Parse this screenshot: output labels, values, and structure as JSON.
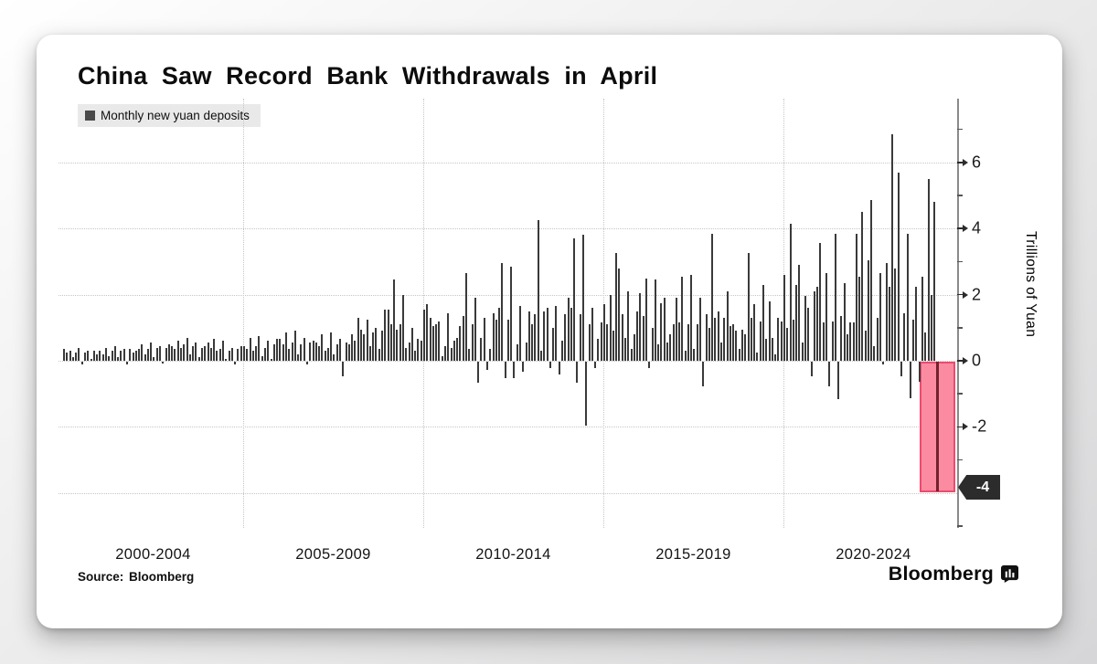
{
  "header": {
    "title": "China Saw Record Bank Withdrawals in April"
  },
  "legend": {
    "label": "Monthly new yuan deposits",
    "marker_color": "#4a4a4a"
  },
  "y_axis": {
    "title": "Trillions of Yuan",
    "major_ticks": [
      6,
      4,
      2,
      0,
      -2
    ],
    "minor_ticks": [
      7,
      5,
      3,
      1,
      -1,
      -3,
      -5
    ],
    "callout": "-4"
  },
  "x_axis": {
    "labels": [
      "2000-2004",
      "2005-2009",
      "2010-2014",
      "2015-2019",
      "2020-2024"
    ]
  },
  "footer": {
    "source": "Source: Bloomberg",
    "brand": "Bloomberg"
  },
  "colors": {
    "bar": "#3a3a3a",
    "highlight_fill": "#fa8ba1",
    "highlight_border": "#ee4a6e",
    "highlight_bar": "#73212e",
    "callout_bg": "#2c2c2c",
    "gridline": "#c6c6c6"
  },
  "chart_data": {
    "type": "bar",
    "title": "China Saw Record Bank Withdrawals in April",
    "series_label": "Monthly new yuan deposits",
    "unit": "trillions of yuan",
    "x_start": "2000-01",
    "x_end": "2024-04",
    "ylabel": "Trillions of Yuan",
    "ylim": [
      -5,
      8
    ],
    "y_gridlines": [
      6,
      4,
      2,
      0,
      -2,
      -4
    ],
    "x_gridline_years": [
      2005,
      2010,
      2015,
      2020
    ],
    "x_tick_labels": [
      "2000-2004",
      "2005-2009",
      "2010-2014",
      "2015-2019",
      "2020-2024"
    ],
    "grid": "dotted",
    "legend_position": "top-left",
    "highlighted_month": "2024-04",
    "highlighted_value": -3.92,
    "callout_label": "-4",
    "values_by_year": {
      "2000": [
        0.35,
        0.25,
        0.3,
        0.1,
        0.25,
        0.4,
        -0.1,
        0.25,
        0.3,
        0.05,
        0.3,
        0.2
      ],
      "2001": [
        0.3,
        0.2,
        0.4,
        0.15,
        0.3,
        0.45,
        0.1,
        0.3,
        0.35,
        -0.1,
        0.35,
        0.25
      ],
      "2002": [
        0.3,
        0.35,
        0.5,
        0.2,
        0.35,
        0.55,
        0.1,
        0.4,
        0.45,
        -0.05,
        0.4,
        0.5
      ],
      "2003": [
        0.45,
        0.35,
        0.6,
        0.4,
        0.5,
        0.7,
        0.2,
        0.45,
        0.55,
        0.1,
        0.4,
        0.45
      ],
      "2004": [
        0.55,
        0.4,
        0.65,
        0.3,
        0.35,
        0.6,
        0.05,
        0.3,
        0.4,
        -0.1,
        0.35,
        0.45
      ],
      "2005": [
        0.45,
        0.35,
        0.7,
        0.3,
        0.45,
        0.75,
        0.15,
        0.4,
        0.6,
        0.05,
        0.5,
        0.65
      ],
      "2006": [
        0.65,
        0.5,
        0.85,
        0.35,
        0.55,
        0.9,
        0.2,
        0.5,
        0.7,
        -0.1,
        0.55,
        0.6
      ],
      "2007": [
        0.55,
        0.45,
        0.8,
        0.3,
        0.4,
        0.85,
        0.2,
        0.5,
        0.65,
        -0.45,
        0.55,
        0.5
      ],
      "2008": [
        0.8,
        0.6,
        1.3,
        0.95,
        0.8,
        1.25,
        0.45,
        0.85,
        1.0,
        0.35,
        0.9,
        1.55
      ],
      "2009": [
        1.55,
        1.1,
        2.45,
        0.95,
        1.1,
        2.0,
        0.4,
        0.55,
        1.0,
        0.3,
        0.65,
        0.6
      ],
      "2010": [
        1.55,
        1.7,
        1.3,
        1.05,
        1.1,
        1.2,
        0.15,
        0.45,
        1.45,
        0.4,
        0.6,
        0.7
      ],
      "2011": [
        1.05,
        1.35,
        2.65,
        0.35,
        1.1,
        1.9,
        -0.65,
        0.7,
        1.3,
        -0.25,
        0.35,
        1.45
      ],
      "2012": [
        1.25,
        1.6,
        2.95,
        -0.5,
        1.25,
        2.85,
        -0.5,
        0.5,
        1.65,
        -0.3,
        0.55,
        1.5
      ],
      "2013": [
        1.1,
        1.4,
        4.25,
        0.3,
        1.5,
        1.6,
        -0.2,
        1.0,
        1.65,
        -0.4,
        0.6,
        1.4
      ],
      "2014": [
        1.9,
        1.6,
        3.7,
        -0.65,
        1.4,
        3.8,
        -1.95,
        1.1,
        1.6,
        -0.2,
        0.65,
        1.15
      ],
      "2015": [
        1.7,
        1.1,
        2.0,
        0.9,
        3.25,
        2.8,
        1.4,
        0.7,
        2.1,
        0.35,
        0.8,
        1.5
      ],
      "2016": [
        2.05,
        1.35,
        2.5,
        -0.2,
        1.0,
        2.45,
        0.5,
        1.75,
        1.9,
        0.55,
        0.8,
        1.1
      ],
      "2017": [
        1.9,
        1.15,
        2.55,
        0.3,
        1.1,
        2.6,
        0.35,
        1.1,
        1.9,
        -0.75,
        1.4,
        1.0
      ],
      "2018": [
        3.85,
        1.3,
        1.5,
        0.55,
        1.3,
        2.1,
        1.05,
        1.1,
        0.9,
        0.35,
        0.95,
        0.8
      ],
      "2019": [
        3.25,
        1.3,
        1.7,
        0.25,
        1.2,
        2.3,
        0.65,
        1.8,
        0.7,
        0.2,
        1.3,
        1.2
      ],
      "2020": [
        2.6,
        1.0,
        4.15,
        1.25,
        2.3,
        2.9,
        0.55,
        1.95,
        1.6,
        -0.45,
        2.1,
        2.25
      ],
      "2021": [
        3.55,
        1.15,
        2.65,
        -0.75,
        1.2,
        3.85,
        -1.15,
        1.35,
        2.35,
        0.8,
        1.15,
        1.15
      ],
      "2022": [
        3.85,
        2.55,
        4.5,
        0.9,
        3.05,
        4.85,
        0.45,
        1.3,
        2.65,
        -0.1,
        2.95,
        2.25
      ],
      "2023": [
        6.85,
        2.8,
        5.7,
        -0.45,
        1.45,
        3.85,
        -1.1,
        1.25,
        2.25,
        -0.6,
        2.55,
        0.85
      ],
      "2024": [
        5.5,
        2.0,
        4.8,
        -3.92
      ]
    }
  }
}
